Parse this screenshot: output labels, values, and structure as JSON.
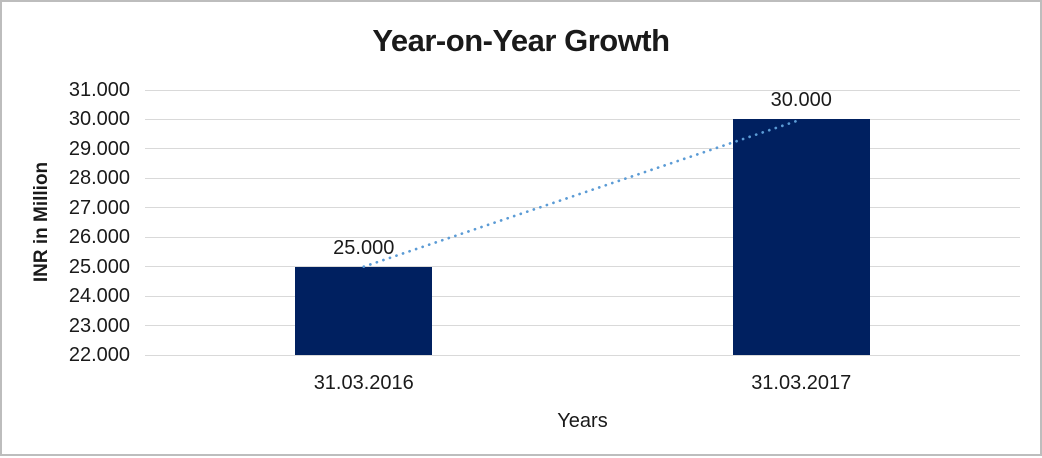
{
  "chart_data": {
    "type": "bar",
    "title": "Year-on-Year Growth",
    "xlabel": "Years",
    "ylabel": "INR in Million",
    "categories": [
      "31.03.2016",
      "31.03.2017"
    ],
    "values": [
      25000,
      30000
    ],
    "value_labels": [
      "25.000",
      "30.000"
    ],
    "y_tick_labels": [
      "31.000",
      "30.000",
      "29.000",
      "28.000",
      "27.000",
      "26.000",
      "25.000",
      "24.000",
      "23.000",
      "22.000"
    ],
    "ylim": [
      22000,
      31000
    ],
    "y_tick_step": 1000,
    "grid": "horizontal",
    "legend": "none",
    "bar_color": "#002060",
    "gridline_color": "#d9d9d9",
    "frame_border_color": "#bdbdbd",
    "trendline": {
      "type": "linear",
      "style": "round-dotted",
      "color": "#5b9bd5",
      "from_value": 25000,
      "to_value": 30000
    }
  }
}
